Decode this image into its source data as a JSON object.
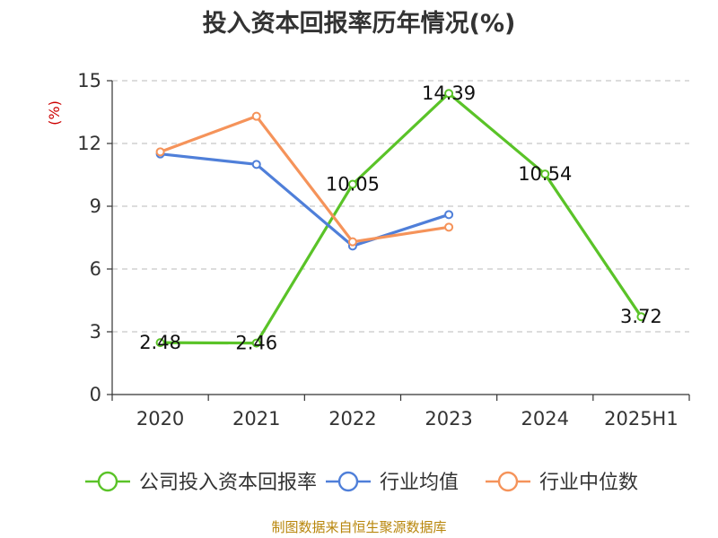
{
  "chart_data": {
    "type": "line",
    "title": "投入资本回报率历年情况(%)",
    "ylabel": "(%)",
    "xlabel": "",
    "categories": [
      "2020",
      "2021",
      "2022",
      "2023",
      "2024",
      "2025H1"
    ],
    "ylim": [
      0,
      15
    ],
    "yticks": [
      0,
      3,
      6,
      9,
      12,
      15
    ],
    "grid": true,
    "legend_position": "bottom",
    "series": [
      {
        "name": "公司投入资本回报率",
        "color": "#5ac328",
        "values": [
          2.48,
          2.46,
          10.05,
          14.39,
          10.54,
          3.72
        ],
        "labels": [
          "2.48",
          "2.46",
          "10.05",
          "14.39",
          "10.54",
          "3.72"
        ]
      },
      {
        "name": "行业均值",
        "color": "#4f7fd9",
        "values": [
          11.5,
          11.0,
          7.1,
          8.6,
          null,
          null
        ]
      },
      {
        "name": "行业中位数",
        "color": "#f5935a",
        "values": [
          11.6,
          13.3,
          7.3,
          8.0,
          null,
          null
        ]
      }
    ],
    "source": "制图数据来自恒生聚源数据库"
  }
}
